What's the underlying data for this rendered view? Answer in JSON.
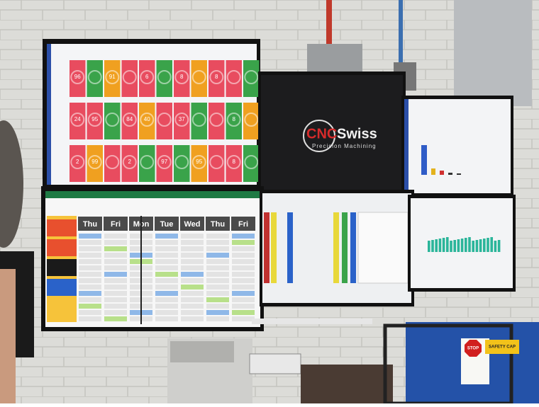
{
  "logo": {
    "brand_a": "CNC",
    "brand_b": "Swiss",
    "tagline": "Precision Machining"
  },
  "gauges": [
    [
      96,
      91,
      6,
      8,
      8
    ],
    [
      24,
      95,
      84,
      40,
      37,
      32,
      8
    ],
    [
      2,
      99,
      2,
      97,
      95,
      8
    ]
  ],
  "schedule": {
    "days": [
      "Thu",
      "Fri",
      "Mon",
      "Tue",
      "Wed",
      "Thu",
      "Fri"
    ]
  },
  "signs": {
    "stop": "STOP",
    "safety": "SAFETY CAP"
  }
}
